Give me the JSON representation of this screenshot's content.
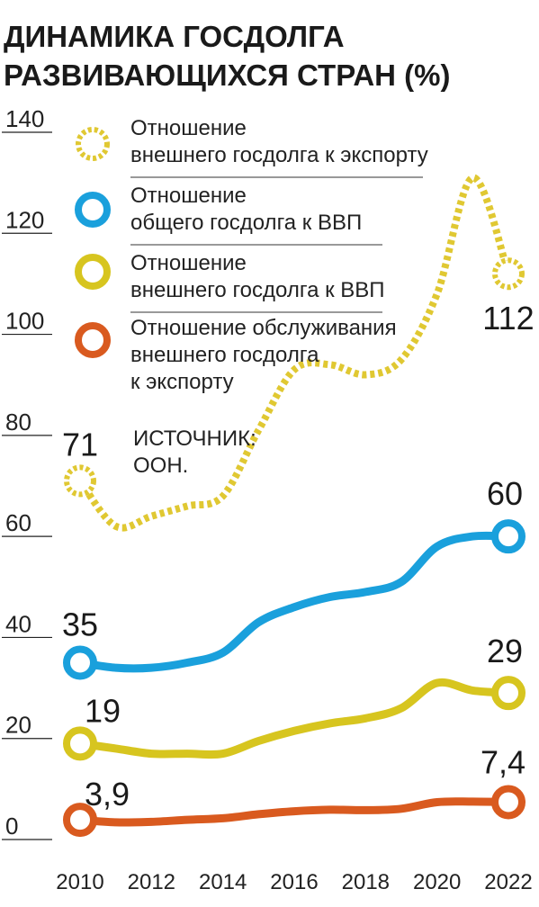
{
  "chart_data": {
    "type": "line",
    "title": "ДИНАМИКА ГОСДОЛГА РАЗВИВАЮЩИХСЯ СТРАН (%)",
    "title_lines": [
      "ДИНАМИКА ГОСДОЛГА",
      "РАЗВИВАЮЩИХСЯ СТРАН (%)"
    ],
    "source_lines": [
      "ИСТОЧНИК:",
      "ООН."
    ],
    "xlabel": "",
    "ylabel": "",
    "ylim": [
      0,
      140
    ],
    "xlim": [
      2010,
      2022
    ],
    "y_ticks": [
      "0",
      "20",
      "40",
      "60",
      "80",
      "100",
      "120",
      "140"
    ],
    "x_ticks": [
      "2010",
      "2012",
      "2014",
      "2016",
      "2018",
      "2020",
      "2022"
    ],
    "grid": false,
    "legend_position": "top-left",
    "series": [
      {
        "name": "Отношение внешнего госдолга к экспорту",
        "legend_lines": [
          "Отношение",
          "внешнего госдолга к экспорту"
        ],
        "color": "#e0c832",
        "style": "dotted",
        "x": [
          2010,
          2011,
          2012,
          2013,
          2014,
          2015,
          2016,
          2017,
          2018,
          2019,
          2020,
          2021,
          2022
        ],
        "values": [
          71,
          62,
          64,
          66,
          68,
          81,
          93,
          94,
          92,
          95,
          108,
          131,
          112
        ],
        "start_label": "71",
        "end_label": "112"
      },
      {
        "name": "Отношение общего госдолга к ВВП",
        "legend_lines": [
          "Отношение",
          "общего госдолга к ВВП"
        ],
        "color": "#1aa0dc",
        "style": "solid",
        "x": [
          2010,
          2011,
          2012,
          2013,
          2014,
          2015,
          2016,
          2017,
          2018,
          2019,
          2020,
          2021,
          2022
        ],
        "values": [
          35,
          34,
          34,
          35,
          37,
          43,
          46,
          48,
          49,
          51,
          58,
          60,
          60
        ],
        "start_label": "35",
        "end_label": "60"
      },
      {
        "name": "Отношение внешнего госдолга к ВВП",
        "legend_lines": [
          "Отношение",
          "внешнего госдолга к ВВП"
        ],
        "color": "#d7c51f",
        "style": "solid",
        "x": [
          2010,
          2011,
          2012,
          2013,
          2014,
          2015,
          2016,
          2017,
          2018,
          2019,
          2020,
          2021,
          2022
        ],
        "values": [
          19,
          18,
          17,
          17,
          17,
          19.5,
          21.5,
          23,
          24,
          26,
          31,
          29.5,
          29
        ],
        "start_label": "19",
        "end_label": "29"
      },
      {
        "name": "Отношение обслуживания внешнего госдолга к экспорту",
        "legend_lines": [
          "Отношение обслуживания",
          "внешнего госдолга",
          "к экспорту"
        ],
        "color": "#d95a1f",
        "style": "solid",
        "x": [
          2010,
          2011,
          2012,
          2013,
          2014,
          2015,
          2016,
          2017,
          2018,
          2019,
          2020,
          2021,
          2022
        ],
        "values": [
          3.9,
          3.4,
          3.5,
          3.9,
          4.2,
          5,
          5.6,
          5.9,
          5.8,
          6.1,
          7.4,
          7.5,
          7.4
        ],
        "start_label": "3,9",
        "end_label": "7,4"
      }
    ]
  }
}
